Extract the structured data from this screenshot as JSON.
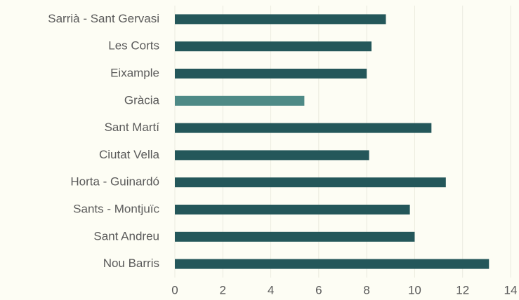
{
  "chart_data": {
    "type": "bar",
    "orientation": "horizontal",
    "categories": [
      "Sarrià - Sant Gervasi",
      "Les Corts",
      "Eixample",
      "Gràcia",
      "Sant Martí",
      "Ciutat Vella",
      "Horta - Guinardó",
      "Sants - Montjuïc",
      "Sant Andreu",
      "Nou Barris"
    ],
    "values": [
      8.8,
      8.2,
      8.0,
      5.4,
      10.7,
      8.1,
      11.3,
      9.8,
      10.0,
      13.1
    ],
    "colors": [
      "#24575a",
      "#24575a",
      "#24575a",
      "#4e8a86",
      "#24575a",
      "#24575a",
      "#24575a",
      "#24575a",
      "#24575a",
      "#24575a"
    ],
    "xlim": [
      0,
      14
    ],
    "xticks": [
      0,
      2,
      4,
      6,
      8,
      10,
      12,
      14
    ],
    "grid": true
  }
}
